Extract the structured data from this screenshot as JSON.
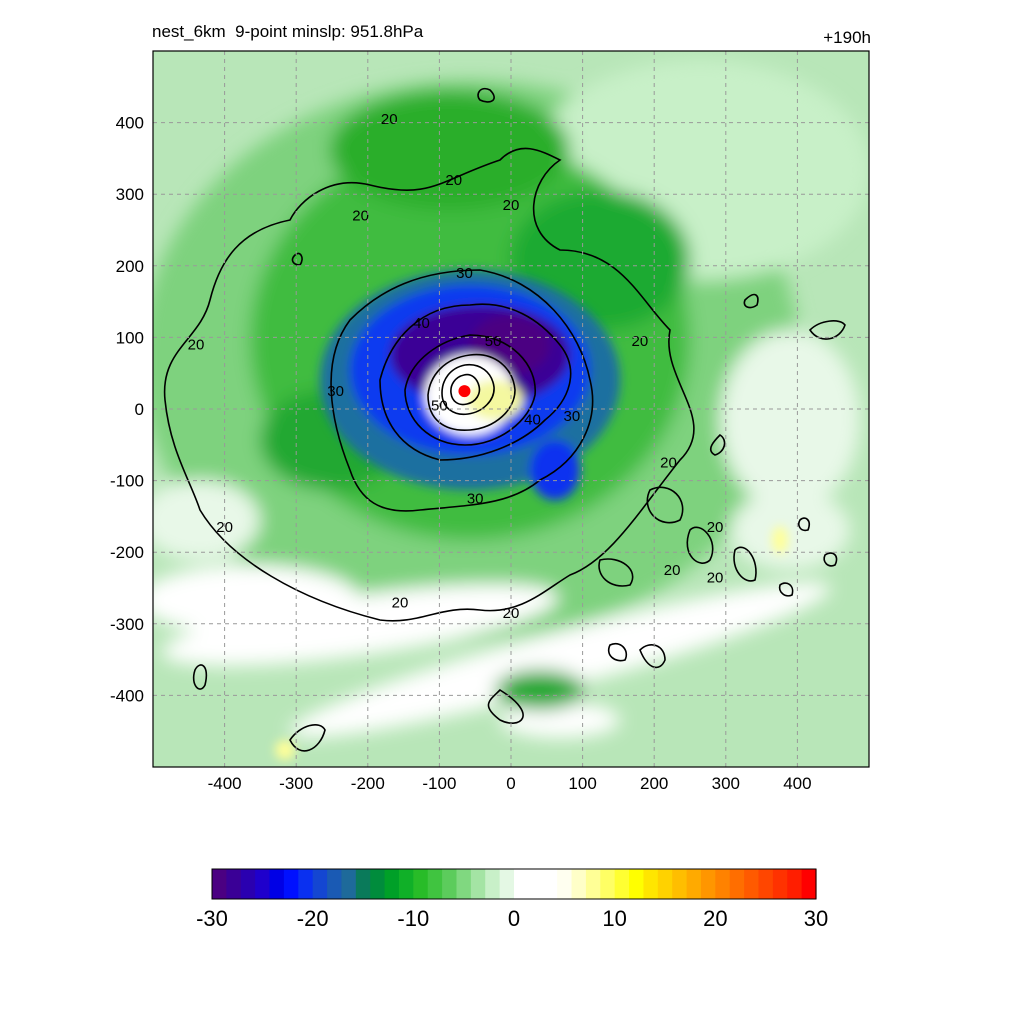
{
  "title_left": "nest_6km  9-point minslp: 951.8hPa",
  "title_right": "+190h",
  "chart_data": {
    "type": "heatmap",
    "x_ticks": [
      -400,
      -300,
      -200,
      -100,
      0,
      100,
      200,
      300,
      400
    ],
    "y_ticks": [
      400,
      300,
      200,
      100,
      0,
      -100,
      -200,
      -300,
      -400
    ],
    "xlim": [
      -500,
      500
    ],
    "ylim": [
      -500,
      500
    ],
    "grid": true,
    "center_marker": {
      "x": -65,
      "y": 25,
      "color": "#ff0000"
    },
    "contour_levels": [
      20,
      30,
      40,
      50
    ],
    "contour_labels": [
      {
        "text": "20",
        "x": -170,
        "y": 405
      },
      {
        "text": "20",
        "x": -80,
        "y": 320
      },
      {
        "text": "20",
        "x": -210,
        "y": 270
      },
      {
        "text": "20",
        "x": -440,
        "y": 90
      },
      {
        "text": "20",
        "x": -400,
        "y": -165
      },
      {
        "text": "20",
        "x": 0,
        "y": 285
      },
      {
        "text": "20",
        "x": 180,
        "y": 95
      },
      {
        "text": "20",
        "x": 220,
        "y": -75
      },
      {
        "text": "20",
        "x": 285,
        "y": -165
      },
      {
        "text": "20",
        "x": 225,
        "y": -225
      },
      {
        "text": "20",
        "x": 285,
        "y": -235
      },
      {
        "text": "20",
        "x": -155,
        "y": -270
      },
      {
        "text": "20",
        "x": 0,
        "y": -285
      },
      {
        "text": "30",
        "x": -65,
        "y": 190
      },
      {
        "text": "30",
        "x": -245,
        "y": 25
      },
      {
        "text": "30",
        "x": 85,
        "y": -10
      },
      {
        "text": "30",
        "x": -50,
        "y": -125
      },
      {
        "text": "40",
        "x": -125,
        "y": 120
      },
      {
        "text": "40",
        "x": 30,
        "y": -15
      },
      {
        "text": "50",
        "x": -25,
        "y": 95
      },
      {
        "text": "50",
        "x": -100,
        "y": 5
      }
    ],
    "colorbar": {
      "min": -30,
      "max": 30,
      "ticks": [
        -30,
        -20,
        -10,
        0,
        10,
        20,
        30
      ],
      "colors": [
        "#4b0082",
        "#3a0096",
        "#2a00b0",
        "#1f00cc",
        "#0000e6",
        "#0010ff",
        "#0a30f0",
        "#1446d2",
        "#1a5ab4",
        "#1e6a9a",
        "#0a7a5a",
        "#008c3c",
        "#00a028",
        "#10b028",
        "#28bc28",
        "#40c440",
        "#5ccc5c",
        "#80d880",
        "#a4e4a4",
        "#c8f0c8",
        "#e4f8e4",
        "#ffffff",
        "#ffffff",
        "#ffffff",
        "#fffff0",
        "#ffffc8",
        "#ffff96",
        "#ffff64",
        "#ffff32",
        "#ffff00",
        "#ffe600",
        "#ffd200",
        "#ffbe00",
        "#ffaa00",
        "#ff9600",
        "#ff8200",
        "#ff6e00",
        "#ff5a00",
        "#ff4600",
        "#ff3200",
        "#ff1e00",
        "#ff0000"
      ]
    }
  }
}
